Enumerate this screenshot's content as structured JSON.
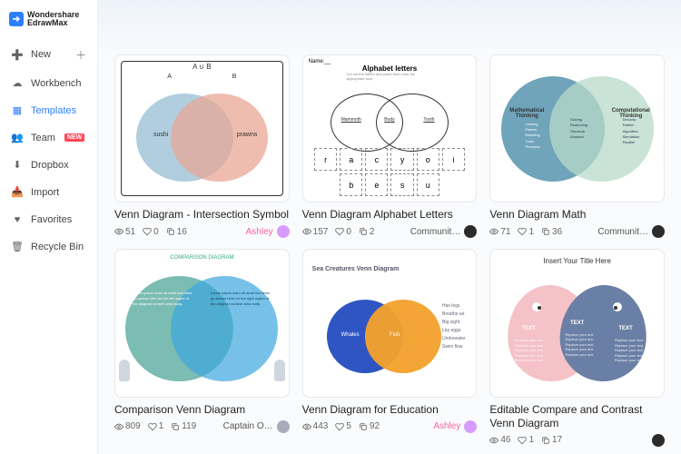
{
  "brand": {
    "name1": "Wondershare",
    "name2": "EdrawMax"
  },
  "nav": [
    {
      "label": "New",
      "icon": "➕",
      "plus": true
    },
    {
      "label": "Workbench",
      "icon": "☁"
    },
    {
      "label": "Templates",
      "icon": "▦",
      "active": true
    },
    {
      "label": "Team",
      "icon": "👥",
      "new_badge": "NEW"
    },
    {
      "label": "Dropbox",
      "icon": "⬇"
    },
    {
      "label": "Import",
      "icon": "📥"
    },
    {
      "label": "Favorites",
      "icon": "♥"
    },
    {
      "label": "Recycle Bin",
      "icon": "🗑"
    }
  ],
  "colors": {
    "accent": "#2e7fff",
    "card_border": "#e6e8ec",
    "body_bg": "#fafbfc",
    "venn_blue": "#a3c6d9",
    "venn_coral": "#e8a795",
    "venn3_left": "#69b3a8",
    "venn3_right": "#3da6de",
    "venn5_blue": "#2f55c3",
    "venn5_orange": "#f2a12e",
    "math_left": "#5f9ab2",
    "math_right": "#b7d9c8",
    "drop_pink": "#f4c2c7",
    "drop_blue": "#6a7fa5",
    "author_pink": "#ff7eb9",
    "avatar_purple": "#d69cff",
    "avatar_dark": "#2b2b2b"
  },
  "cards": [
    {
      "title": "Venn Diagram - Intersection Symbol",
      "views": "51",
      "likes": "0",
      "copies": "16",
      "author": "Ashley",
      "author_color": "#ff5fa1",
      "avatar_color": "#d69cff",
      "thumb": {
        "kind": "venn1",
        "top_label": "A ∪ B",
        "a": "A",
        "b": "B",
        "left_text": "sushi",
        "right_text": "prawns"
      }
    },
    {
      "title": "Venn Diagram Alphabet Letters",
      "views": "157",
      "likes": "0",
      "copies": "2",
      "author": "Communit…",
      "author_color": "#555",
      "avatar_color": "#2b2b2b",
      "thumb": {
        "kind": "alphabet",
        "heading": "Alphabet letters",
        "name_label": "Name:__",
        "circle_labels": [
          "Mammoth",
          "Body",
          "Tooth"
        ],
        "letters": [
          "r",
          "a",
          "c",
          "y",
          "o",
          "i",
          "b",
          "e",
          "s",
          "u"
        ]
      }
    },
    {
      "title": "Venn Diagram Math",
      "views": "71",
      "likes": "1",
      "copies": "36",
      "author": "Communit…",
      "author_color": "#555",
      "avatar_color": "#2b2b2b",
      "thumb": {
        "kind": "math",
        "left_label": "Mathematical\nThinking",
        "right_label": "Computational\nThinking"
      }
    },
    {
      "title": "Comparison Venn Diagram",
      "views": "809",
      "likes": "1",
      "copies": "119",
      "author": "Captain O…",
      "author_color": "#555",
      "avatar_color": "#aab",
      "thumb": {
        "kind": "comparison",
        "heading": "COMPARISON DIAGRAM"
      }
    },
    {
      "title": "Venn Diagram for Education",
      "views": "443",
      "likes": "5",
      "copies": "92",
      "author": "Ashley",
      "author_color": "#ff5fa1",
      "avatar_color": "#d69cff",
      "thumb": {
        "kind": "education",
        "heading": "Sea Creatures Venn Diagram",
        "left": "Whales",
        "right": "Fish"
      }
    },
    {
      "title": "Editable Compare and Contrast Venn Diagram",
      "views": "46",
      "likes": "1",
      "copies": "17",
      "author": "",
      "author_color": "#555",
      "avatar_color": "#2b2b2b",
      "thumb": {
        "kind": "drops",
        "heading": "Insert Your Title Here",
        "left": "TEXT",
        "right": "TEXT",
        "mid": "TEXT"
      }
    }
  ]
}
